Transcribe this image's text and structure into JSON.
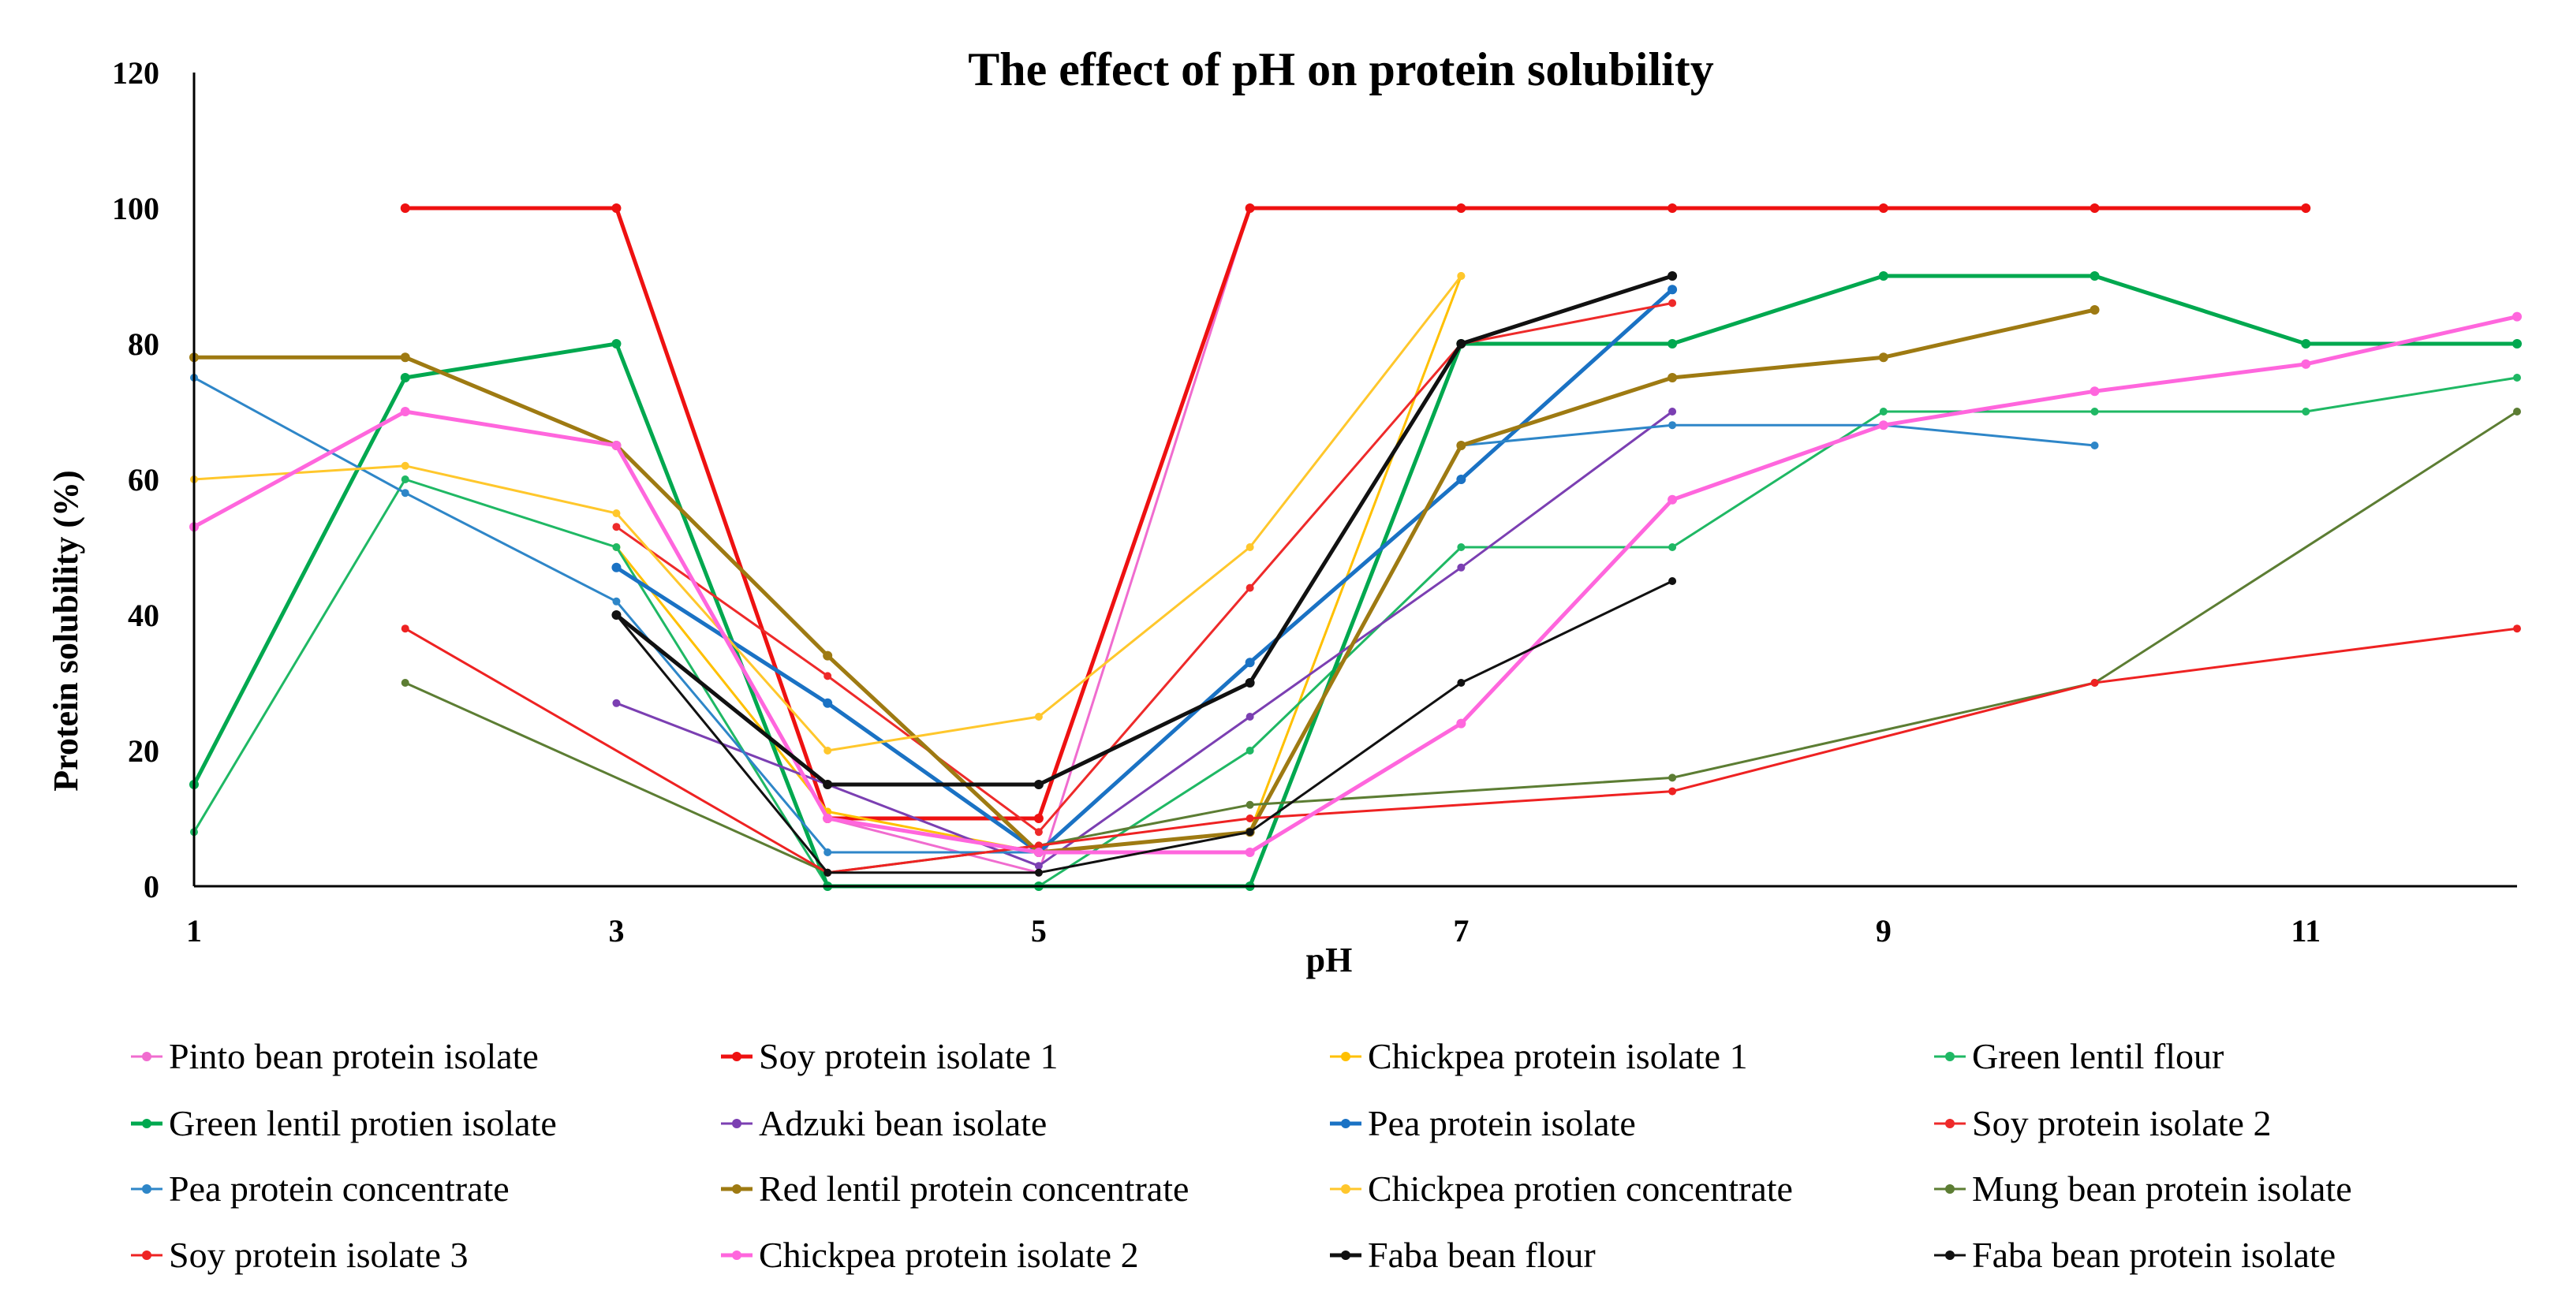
{
  "chart_data": {
    "type": "line",
    "title": "The effect of pH on protein solubility",
    "xlabel": "pH",
    "ylabel": "Protein solubility (%)",
    "xlim": [
      1,
      12
    ],
    "ylim": [
      0,
      120
    ],
    "x_ticks": [
      1,
      3,
      5,
      7,
      9,
      11
    ],
    "y_ticks": [
      0,
      20,
      40,
      60,
      80,
      100,
      120
    ],
    "legend_position": "bottom",
    "series": [
      {
        "name": "Pinto bean protein isolate",
        "color": "#f06ccf",
        "width": 3,
        "points": [
          [
            2,
            70
          ],
          [
            3,
            65
          ],
          [
            4,
            10
          ],
          [
            5,
            2
          ],
          [
            6,
            100
          ],
          [
            7,
            100
          ],
          [
            8,
            100
          ],
          [
            9,
            100
          ],
          [
            10,
            100
          ],
          [
            11,
            100
          ]
        ]
      },
      {
        "name": "Soy protein isolate 1",
        "color": "#ee1111",
        "width": 5,
        "points": [
          [
            2,
            100
          ],
          [
            3,
            100
          ],
          [
            4,
            10
          ],
          [
            5,
            10
          ],
          [
            6,
            100
          ],
          [
            7,
            100
          ],
          [
            8,
            100
          ],
          [
            9,
            100
          ],
          [
            10,
            100
          ],
          [
            11,
            100
          ]
        ]
      },
      {
        "name": "Chickpea protein isolate 1",
        "color": "#ffc000",
        "width": 3,
        "points": [
          [
            3,
            50
          ],
          [
            4,
            11
          ],
          [
            5,
            5
          ],
          [
            6,
            8
          ],
          [
            7,
            90
          ]
        ]
      },
      {
        "name": "Green lentil flour",
        "color": "#1fb864",
        "width": 3,
        "points": [
          [
            1,
            8
          ],
          [
            2,
            60
          ],
          [
            3,
            50
          ],
          [
            4,
            0
          ],
          [
            5,
            0
          ],
          [
            6,
            20
          ],
          [
            7,
            50
          ],
          [
            8,
            50
          ],
          [
            9,
            70
          ],
          [
            10,
            70
          ],
          [
            11,
            70
          ],
          [
            12,
            75
          ]
        ]
      },
      {
        "name": "Green lentil protien isolate",
        "color": "#00a84f",
        "width": 5,
        "points": [
          [
            1,
            15
          ],
          [
            2,
            75
          ],
          [
            3,
            80
          ],
          [
            4,
            0
          ],
          [
            5,
            0
          ],
          [
            6,
            0
          ],
          [
            7,
            80
          ],
          [
            8,
            80
          ],
          [
            9,
            90
          ],
          [
            10,
            90
          ],
          [
            11,
            80
          ],
          [
            12,
            80
          ]
        ]
      },
      {
        "name": "Adzuki bean isolate",
        "color": "#7b3fb2",
        "width": 3,
        "points": [
          [
            3,
            27
          ],
          [
            4,
            15
          ],
          [
            5,
            3
          ],
          [
            6,
            25
          ],
          [
            7,
            47
          ],
          [
            8,
            70
          ]
        ]
      },
      {
        "name": "Pea protein isolate",
        "color": "#1a72c4",
        "width": 5,
        "points": [
          [
            3,
            47
          ],
          [
            4,
            27
          ],
          [
            5,
            5
          ],
          [
            6,
            33
          ],
          [
            7,
            60
          ],
          [
            8,
            88
          ]
        ]
      },
      {
        "name": "Soy protein isolate 2",
        "color": "#ee2a2a",
        "width": 3,
        "points": [
          [
            3,
            53
          ],
          [
            4,
            31
          ],
          [
            5,
            8
          ],
          [
            6,
            44
          ],
          [
            7,
            80
          ],
          [
            8,
            86
          ]
        ]
      },
      {
        "name": "Pea protein concentrate",
        "color": "#2e86c8",
        "width": 3,
        "points": [
          [
            1,
            75
          ],
          [
            2,
            58
          ],
          [
            3,
            42
          ],
          [
            4,
            5
          ],
          [
            5,
            5
          ],
          [
            6,
            8
          ],
          [
            7,
            65
          ],
          [
            8,
            68
          ],
          [
            9,
            68
          ],
          [
            10,
            65
          ]
        ]
      },
      {
        "name": "Red lentil protein concentrate",
        "color": "#9e7a12",
        "width": 5,
        "points": [
          [
            1,
            78
          ],
          [
            2,
            78
          ],
          [
            3,
            65
          ],
          [
            4,
            34
          ],
          [
            5,
            5
          ],
          [
            6,
            8
          ],
          [
            7,
            65
          ],
          [
            8,
            75
          ],
          [
            9,
            78
          ],
          [
            10,
            85
          ]
        ]
      },
      {
        "name": "Chickpea protien concentrate",
        "color": "#ffc72c",
        "width": 3,
        "points": [
          [
            1,
            60
          ],
          [
            2,
            62
          ],
          [
            3,
            55
          ],
          [
            4,
            20
          ],
          [
            5,
            25
          ],
          [
            6,
            50
          ],
          [
            7,
            90
          ]
        ]
      },
      {
        "name": "Mung bean protein isolate",
        "color": "#5c7d33",
        "width": 3,
        "points": [
          [
            2,
            30
          ],
          [
            4,
            2
          ],
          [
            5,
            6
          ],
          [
            6,
            12
          ],
          [
            8,
            16
          ],
          [
            10,
            30
          ],
          [
            12,
            70
          ]
        ]
      },
      {
        "name": "Soy protein isolate 3",
        "color": "#ee2222",
        "width": 3,
        "points": [
          [
            2,
            38
          ],
          [
            4,
            2
          ],
          [
            5,
            6
          ],
          [
            6,
            10
          ],
          [
            8,
            14
          ],
          [
            10,
            30
          ],
          [
            12,
            38
          ]
        ]
      },
      {
        "name": "Chickpea protein isolate 2",
        "color": "#ff66dd",
        "width": 5,
        "points": [
          [
            1,
            53
          ],
          [
            2,
            70
          ],
          [
            3,
            65
          ],
          [
            4,
            10
          ],
          [
            5,
            5
          ],
          [
            6,
            5
          ],
          [
            7,
            24
          ],
          [
            8,
            57
          ],
          [
            9,
            68
          ],
          [
            10,
            73
          ],
          [
            11,
            77
          ],
          [
            12,
            84
          ]
        ]
      },
      {
        "name": "Faba bean flour",
        "color": "#111111",
        "width": 5,
        "points": [
          [
            3,
            40
          ],
          [
            4,
            15
          ],
          [
            5,
            15
          ],
          [
            6,
            30
          ],
          [
            7,
            80
          ],
          [
            8,
            90
          ]
        ]
      },
      {
        "name": "Faba bean protein isolate",
        "color": "#111111",
        "width": 3,
        "points": [
          [
            3,
            40
          ],
          [
            4,
            2
          ],
          [
            5,
            2
          ],
          [
            6,
            8
          ],
          [
            7,
            30
          ],
          [
            8,
            45
          ]
        ]
      }
    ]
  }
}
